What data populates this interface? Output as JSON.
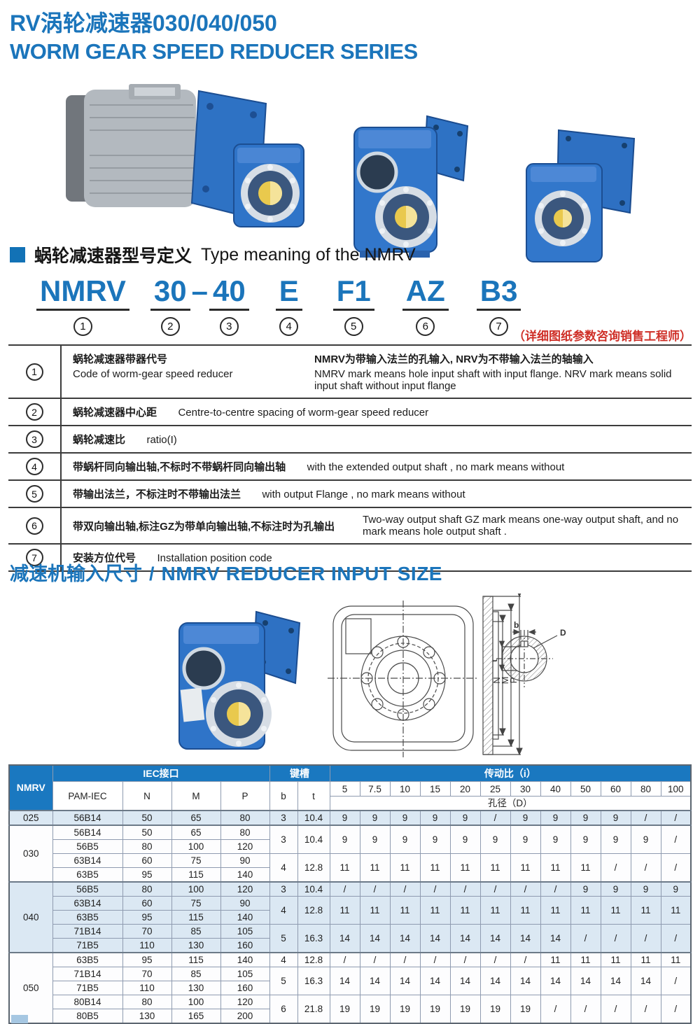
{
  "page": {
    "title_zh": "RV涡轮减速器030/040/050",
    "title_en": "WORM GEAR SPEED REDUCER SERIES"
  },
  "colors": {
    "accent_blue": "#1b75bb",
    "table_header_blue": "#1a78c0",
    "row_tint": "#dbe8f3",
    "note_red": "#cf3028"
  },
  "images": {
    "photo1": "motor-with-worm-gear-reducer",
    "photo2": "worm-gear-reducer-front-flange-view",
    "photo3": "worm-gear-reducer-back-flange-view",
    "photo4": "worm-gear-reducer-three-quarter-view"
  },
  "type_meaning": {
    "title_zh": "蜗轮减速器型号定义",
    "title_en": "Type meaning of the NMRV",
    "code": {
      "seg1": "NMRV",
      "num1": "1",
      "seg2": "30",
      "num2": "2",
      "dash": "–",
      "seg3": "40",
      "num3": "3",
      "seg4": "E",
      "num4": "4",
      "seg5": "F1",
      "num5": "5",
      "seg6": "AZ",
      "num6": "6",
      "seg7": "B3",
      "num7": "7"
    },
    "note": "（详细图纸参数咨询销售工程师）",
    "rows": [
      {
        "num": "1",
        "zh1": "蜗轮减速器带器代号",
        "en1": "Code of worm-gear speed reducer",
        "zh2": "NMRV为带输入法兰的孔输入, NRV为不带输入法兰的轴输入",
        "en2": "NMRV mark means hole input shaft with input flange. NRV mark means solid input shaft without input flange"
      },
      {
        "num": "2",
        "zh": "蜗轮减速器中心距",
        "en": "Centre-to-centre spacing of worm-gear speed reducer"
      },
      {
        "num": "3",
        "zh": "蜗轮减速比",
        "en": "ratio(I)"
      },
      {
        "num": "4",
        "zh": "带蜗杆同向输出轴,不标时不带蜗杆同向输出轴",
        "en": "with the extended output shaft , no mark means without"
      },
      {
        "num": "5",
        "zh": "带输出法兰，不标注时不带输出法兰",
        "en": "with output Flange , no mark means without"
      },
      {
        "num": "6",
        "zh": "带双向输出轴,标注GZ为带单向输出轴,不标注时为孔输出",
        "en": "Two-way output shaft GZ mark means one-way output shaft,  and no mark means hole output shaft ."
      },
      {
        "num": "7",
        "zh": "安装方位代号",
        "en": "Installation position code"
      }
    ]
  },
  "input_size": {
    "title_zh": "减速机输入尺寸",
    "separator": "/",
    "title_en": "NMRV REDUCER INPUT SIZE"
  },
  "drawing": {
    "n": "N",
    "m": "M",
    "p": "P",
    "b": "b",
    "t": "t",
    "d": "D"
  },
  "table": {
    "nmrv_label": "NMRV",
    "group_iec": "IEC接口",
    "group_key": "键槽",
    "group_ratio": "传动比（i）",
    "bore_label": "孔径（D）",
    "sub_headers": [
      "PAM-IEC",
      "N",
      "M",
      "P",
      "b",
      "t"
    ],
    "ratios": [
      "5",
      "7.5",
      "10",
      "15",
      "20",
      "25",
      "30",
      "40",
      "50",
      "60",
      "80",
      "100"
    ],
    "body": [
      {
        "tint": true,
        "sec": true,
        "cells": [
          [
            "025",
            1
          ],
          "56B14",
          "50",
          "65",
          "80",
          "3",
          "10.4",
          "9",
          "9",
          "9",
          "9",
          "9",
          "/",
          "9",
          "9",
          "9",
          "9",
          "/",
          "/"
        ]
      },
      {
        "tint": false,
        "sec": true,
        "cells": [
          [
            "030",
            4
          ],
          "56B14",
          "50",
          "65",
          "80",
          [
            "3",
            2
          ],
          [
            "10.4",
            2
          ],
          [
            "9",
            2
          ],
          [
            "9",
            2
          ],
          [
            "9",
            2
          ],
          [
            "9",
            2
          ],
          [
            "9",
            2
          ],
          [
            "9",
            2
          ],
          [
            "9",
            2
          ],
          [
            "9",
            2
          ],
          [
            "9",
            2
          ],
          [
            "9",
            2
          ],
          [
            "9",
            2
          ],
          [
            "/",
            2
          ]
        ]
      },
      {
        "tint": false,
        "cells": [
          "56B5",
          "80",
          "100",
          "120"
        ]
      },
      {
        "tint": false,
        "cells": [
          "63B14",
          "60",
          "75",
          "90",
          [
            "4",
            2
          ],
          [
            "12.8",
            2
          ],
          [
            "11",
            2
          ],
          [
            "11",
            2
          ],
          [
            "11",
            2
          ],
          [
            "11",
            2
          ],
          [
            "11",
            2
          ],
          [
            "11",
            2
          ],
          [
            "11",
            2
          ],
          [
            "11",
            2
          ],
          [
            "11",
            2
          ],
          [
            "/",
            2
          ],
          [
            "/",
            2
          ],
          [
            "/",
            2
          ]
        ]
      },
      {
        "tint": false,
        "cells": [
          "63B5",
          "95",
          "115",
          "140"
        ]
      },
      {
        "tint": true,
        "sec": true,
        "cells": [
          [
            "040",
            5
          ],
          "56B5",
          "80",
          "100",
          "120",
          "3",
          "10.4",
          "/",
          "/",
          "/",
          "/",
          "/",
          "/",
          "/",
          "/",
          "9",
          "9",
          "9",
          "9"
        ]
      },
      {
        "tint": true,
        "cells": [
          "63B14",
          "60",
          "75",
          "90",
          [
            "4",
            2
          ],
          [
            "12.8",
            2
          ],
          [
            "11",
            2
          ],
          [
            "11",
            2
          ],
          [
            "11",
            2
          ],
          [
            "11",
            2
          ],
          [
            "11",
            2
          ],
          [
            "11",
            2
          ],
          [
            "11",
            2
          ],
          [
            "11",
            2
          ],
          [
            "11",
            2
          ],
          [
            "11",
            2
          ],
          [
            "11",
            2
          ],
          [
            "11",
            2
          ]
        ]
      },
      {
        "tint": true,
        "cells": [
          "63B5",
          "95",
          "115",
          "140"
        ]
      },
      {
        "tint": true,
        "cells": [
          "71B14",
          "70",
          "85",
          "105",
          [
            "5",
            2
          ],
          [
            "16.3",
            2
          ],
          [
            "14",
            2
          ],
          [
            "14",
            2
          ],
          [
            "14",
            2
          ],
          [
            "14",
            2
          ],
          [
            "14",
            2
          ],
          [
            "14",
            2
          ],
          [
            "14",
            2
          ],
          [
            "14",
            2
          ],
          [
            "/",
            2
          ],
          [
            "/",
            2
          ],
          [
            "/",
            2
          ],
          [
            "/",
            2
          ]
        ]
      },
      {
        "tint": true,
        "cells": [
          "71B5",
          "110",
          "130",
          "160"
        ]
      },
      {
        "tint": false,
        "sec": true,
        "cells": [
          [
            "050",
            5
          ],
          "63B5",
          "95",
          "115",
          "140",
          "4",
          "12.8",
          "/",
          "/",
          "/",
          "/",
          "/",
          "/",
          "/",
          "11",
          "11",
          "11",
          "11",
          "11"
        ]
      },
      {
        "tint": false,
        "cells": [
          "71B14",
          "70",
          "85",
          "105",
          [
            "5",
            2
          ],
          [
            "16.3",
            2
          ],
          [
            "14",
            2
          ],
          [
            "14",
            2
          ],
          [
            "14",
            2
          ],
          [
            "14",
            2
          ],
          [
            "14",
            2
          ],
          [
            "14",
            2
          ],
          [
            "14",
            2
          ],
          [
            "14",
            2
          ],
          [
            "14",
            2
          ],
          [
            "14",
            2
          ],
          [
            "14",
            2
          ],
          [
            "/",
            2
          ]
        ]
      },
      {
        "tint": false,
        "cells": [
          "71B5",
          "110",
          "130",
          "160"
        ]
      },
      {
        "tint": false,
        "cells": [
          "80B14",
          "80",
          "100",
          "120",
          [
            "6",
            2
          ],
          [
            "21.8",
            2
          ],
          [
            "19",
            2
          ],
          [
            "19",
            2
          ],
          [
            "19",
            2
          ],
          [
            "19",
            2
          ],
          [
            "19",
            2
          ],
          [
            "19",
            2
          ],
          [
            "19",
            2
          ],
          [
            "/",
            2
          ],
          [
            "/",
            2
          ],
          [
            "/",
            2
          ],
          [
            "/",
            2
          ],
          [
            "/",
            2
          ]
        ]
      },
      {
        "tint": false,
        "cells": [
          "80B5",
          "130",
          "165",
          "200"
        ]
      }
    ]
  }
}
